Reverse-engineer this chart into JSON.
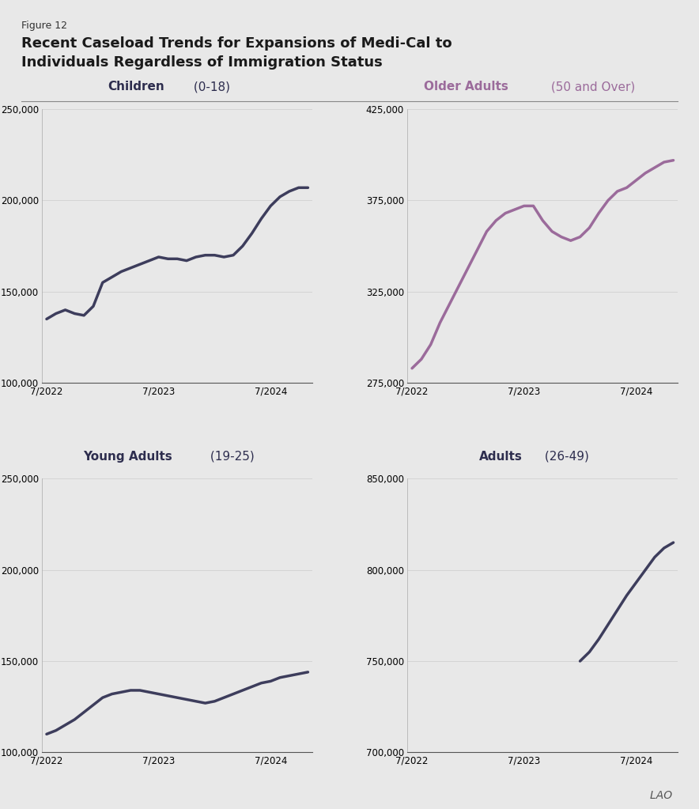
{
  "figure_label": "Figure 12",
  "title": "Recent Caseload Trends for Expansions of Medi-Cal to\nIndividuals Regardless of Immigration Status",
  "background_color": "#e8e8e8",
  "plot_background_color": "#e8e8e8",
  "subplots": [
    {
      "title_bold": "Children",
      "title_normal": " (0-18)",
      "title_color_bold": "#2d2d4e",
      "title_color_normal": "#2d2d4e",
      "line_color": "#3d3d5c",
      "ylim": [
        100000,
        250000
      ],
      "yticks": [
        100000,
        150000,
        200000,
        250000
      ],
      "xticks_labels": [
        "7/2022",
        "7/2023",
        "7/2024"
      ],
      "data_x": [
        0,
        1,
        2,
        3,
        4,
        5,
        6,
        7,
        8,
        9,
        10,
        11,
        12,
        13,
        14,
        15,
        16,
        17,
        18,
        19,
        20,
        21,
        22,
        23,
        24,
        25,
        26,
        27,
        28
      ],
      "data_y": [
        135000,
        138000,
        140000,
        138000,
        137000,
        142000,
        155000,
        158000,
        161000,
        163000,
        165000,
        167000,
        169000,
        168000,
        168000,
        167000,
        169000,
        170000,
        170000,
        169000,
        170000,
        175000,
        182000,
        190000,
        197000,
        202000,
        205000,
        207000,
        207000
      ]
    },
    {
      "title_bold": "Older Adults",
      "title_normal": " (50 and Over)",
      "title_color_bold": "#9b6b9b",
      "title_color_normal": "#9b6b9b",
      "line_color": "#9b6b9b",
      "ylim": [
        275000,
        425000
      ],
      "yticks": [
        275000,
        325000,
        375000,
        425000
      ],
      "xticks_labels": [
        "7/2022",
        "7/2023",
        "7/2024"
      ],
      "data_x": [
        0,
        1,
        2,
        3,
        4,
        5,
        6,
        7,
        8,
        9,
        10,
        11,
        12,
        13,
        14,
        15,
        16,
        17,
        18,
        19,
        20,
        21,
        22,
        23,
        24,
        25,
        26,
        27,
        28
      ],
      "data_y": [
        283000,
        288000,
        296000,
        308000,
        318000,
        328000,
        338000,
        348000,
        358000,
        364000,
        368000,
        370000,
        372000,
        372000,
        364000,
        358000,
        355000,
        353000,
        355000,
        360000,
        368000,
        375000,
        380000,
        382000,
        386000,
        390000,
        393000,
        396000,
        397000
      ]
    },
    {
      "title_bold": "Young Adults",
      "title_normal": " (19-25)",
      "title_color_bold": "#2d2d4e",
      "title_color_normal": "#2d2d4e",
      "line_color": "#3d3d5c",
      "ylim": [
        100000,
        250000
      ],
      "yticks": [
        100000,
        150000,
        200000,
        250000
      ],
      "xticks_labels": [
        "7/2022",
        "7/2023",
        "7/2024"
      ],
      "data_x": [
        0,
        1,
        2,
        3,
        4,
        5,
        6,
        7,
        8,
        9,
        10,
        11,
        12,
        13,
        14,
        15,
        16,
        17,
        18,
        19,
        20,
        21,
        22,
        23,
        24,
        25,
        26,
        27,
        28
      ],
      "data_y": [
        110000,
        112000,
        115000,
        118000,
        122000,
        126000,
        130000,
        132000,
        133000,
        134000,
        134000,
        133000,
        132000,
        131000,
        130000,
        129000,
        128000,
        127000,
        128000,
        130000,
        132000,
        134000,
        136000,
        138000,
        139000,
        141000,
        142000,
        143000,
        144000
      ]
    },
    {
      "title_bold": "Adults",
      "title_normal": " (26-49)",
      "title_color_bold": "#2d2d4e",
      "title_color_normal": "#2d2d4e",
      "line_color": "#3d3d5c",
      "ylim": [
        700000,
        850000
      ],
      "yticks": [
        700000,
        750000,
        800000,
        850000
      ],
      "xticks_labels": [
        "7/2022",
        "7/2023",
        "7/2024"
      ],
      "data_x": [
        0,
        1,
        2,
        3,
        4,
        5,
        6,
        7,
        8,
        9,
        10,
        11,
        12,
        13,
        14,
        15,
        16,
        17,
        18,
        19,
        20,
        21,
        22,
        23,
        24,
        25,
        26,
        27,
        28
      ],
      "data_y": [
        null,
        null,
        null,
        null,
        null,
        null,
        null,
        null,
        null,
        null,
        null,
        null,
        null,
        null,
        null,
        null,
        null,
        null,
        750000,
        755000,
        762000,
        770000,
        778000,
        786000,
        793000,
        800000,
        807000,
        812000,
        815000
      ]
    }
  ]
}
